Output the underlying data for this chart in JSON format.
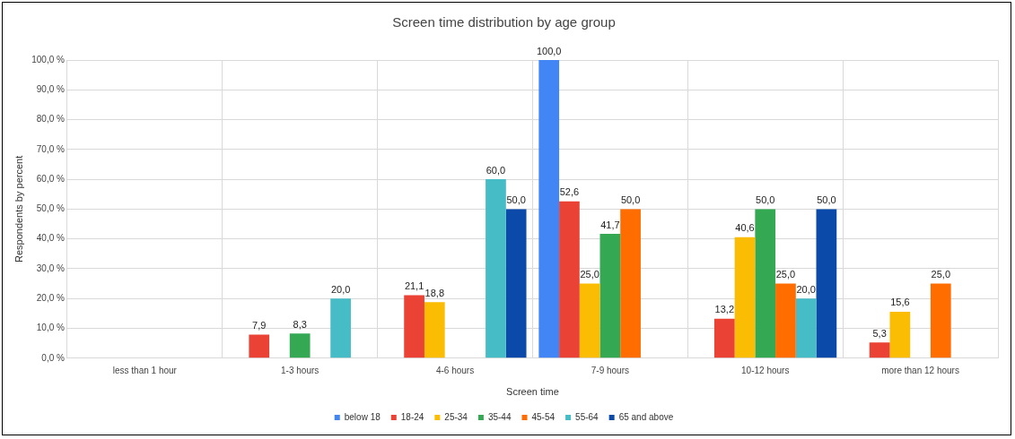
{
  "chart_data": {
    "type": "bar",
    "title": "Screen time distribution by age group",
    "xlabel": "Screen time",
    "ylabel": "Respondents by percent",
    "categories": [
      "less than 1 hour",
      "1-3 hours",
      "4-6 hours",
      "7-9 hours",
      "10-12 hours",
      "more than 12 hours"
    ],
    "series": [
      {
        "name": "below 18",
        "color": "#4285f4",
        "values": [
          null,
          null,
          null,
          100.0,
          null,
          null
        ],
        "value_labels": [
          null,
          null,
          null,
          "100,0",
          null,
          null
        ]
      },
      {
        "name": "18-24",
        "color": "#ea4335",
        "values": [
          null,
          7.9,
          21.1,
          52.6,
          13.2,
          5.3
        ],
        "value_labels": [
          null,
          "7,9",
          "21,1",
          "52,6",
          "13,2",
          "5,3"
        ]
      },
      {
        "name": "25-34",
        "color": "#fbbc04",
        "values": [
          null,
          null,
          18.8,
          25.0,
          40.6,
          15.6
        ],
        "value_labels": [
          null,
          null,
          "18,8",
          "25,0",
          "40,6",
          "15,6"
        ]
      },
      {
        "name": "35-44",
        "color": "#34a853",
        "values": [
          null,
          8.3,
          null,
          41.7,
          50.0,
          null
        ],
        "value_labels": [
          null,
          "8,3",
          null,
          "41,7",
          "50,0",
          null
        ]
      },
      {
        "name": "45-54",
        "color": "#ff6d01",
        "values": [
          null,
          null,
          null,
          50.0,
          25.0,
          25.0
        ],
        "value_labels": [
          null,
          null,
          null,
          "50,0",
          "25,0",
          "25,0"
        ]
      },
      {
        "name": "55-64",
        "color": "#46bdc6",
        "values": [
          null,
          20.0,
          60.0,
          null,
          20.0,
          null
        ],
        "value_labels": [
          null,
          "20,0",
          "60,0",
          null,
          "20,0",
          null
        ]
      },
      {
        "name": "65 and above",
        "color": "#0b4aa8",
        "values": [
          null,
          null,
          50.0,
          null,
          50.0,
          null
        ],
        "value_labels": [
          null,
          null,
          "50,0",
          null,
          "50,0",
          null
        ]
      }
    ],
    "ylim": [
      0,
      100
    ],
    "yticks": [
      {
        "value": 0,
        "label": "0,0 %"
      },
      {
        "value": 10,
        "label": "10,0 %"
      },
      {
        "value": 20,
        "label": "20,0 %"
      },
      {
        "value": 30,
        "label": "30,0 %"
      },
      {
        "value": 40,
        "label": "40,0 %"
      },
      {
        "value": 50,
        "label": "50,0 %"
      },
      {
        "value": 60,
        "label": "60,0 %"
      },
      {
        "value": 70,
        "label": "70,0 %"
      },
      {
        "value": 80,
        "label": "80,0 %"
      },
      {
        "value": 90,
        "label": "90,0 %"
      },
      {
        "value": 100,
        "label": "100,0 %"
      }
    ],
    "grid": true,
    "legend": "bottom"
  }
}
